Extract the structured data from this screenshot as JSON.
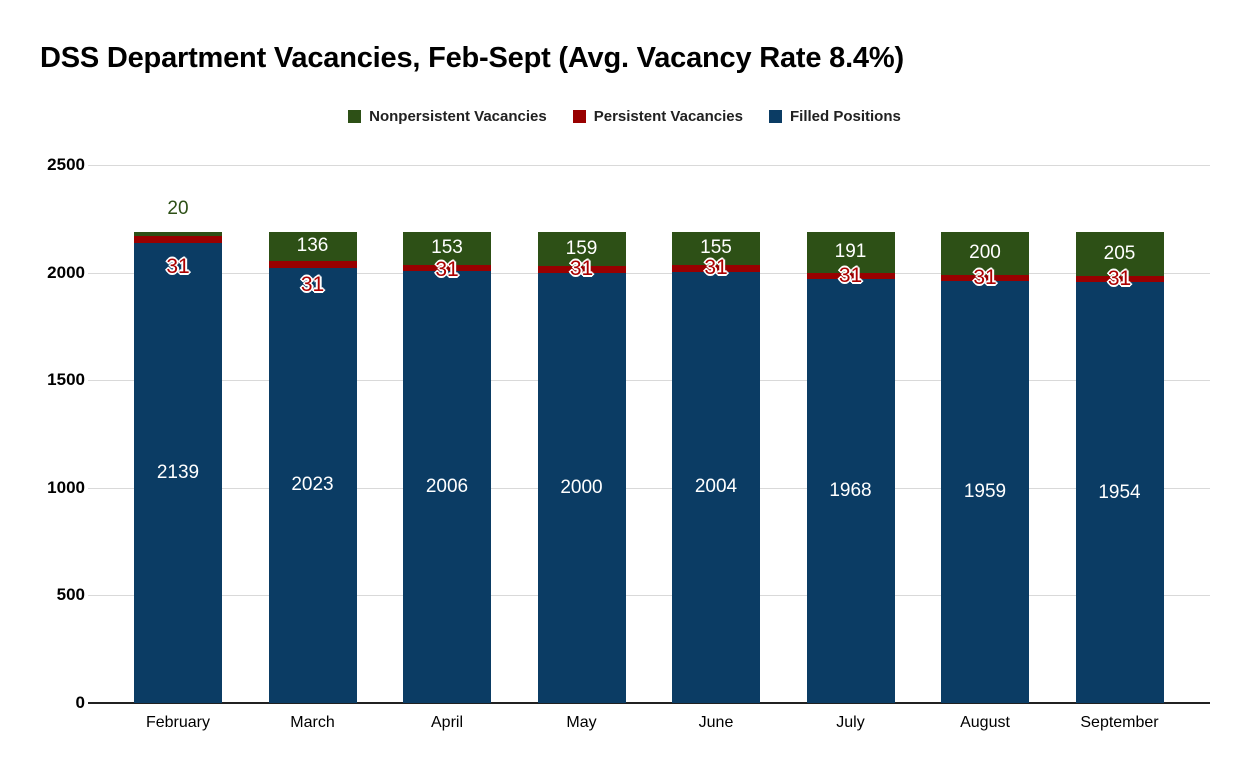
{
  "title": "DSS Department Vacancies, Feb-Sept (Avg. Vacancy Rate 8.4%)",
  "legend": [
    {
      "label": "Nonpersistent Vacancies",
      "color": "#2d5016"
    },
    {
      "label": "Persistent Vacancies",
      "color": "#990000"
    },
    {
      "label": "Filled Positions",
      "color": "#0b3c64"
    }
  ],
  "chart_data": {
    "type": "bar",
    "stacked": true,
    "title": "DSS Department Vacancies, Feb-Sept (Avg. Vacancy Rate 8.4%)",
    "categories": [
      "February",
      "March",
      "April",
      "May",
      "June",
      "July",
      "August",
      "September"
    ],
    "series": [
      {
        "name": "Filled Positions",
        "color": "#0b3c64",
        "values": [
          2139,
          2023,
          2006,
          2000,
          2004,
          1968,
          1959,
          1954
        ]
      },
      {
        "name": "Persistent Vacancies",
        "color": "#990000",
        "values": [
          31,
          31,
          31,
          31,
          31,
          31,
          31,
          31
        ]
      },
      {
        "name": "Nonpersistent Vacancies",
        "color": "#2d5016",
        "values": [
          20,
          136,
          153,
          159,
          155,
          191,
          200,
          205
        ]
      }
    ],
    "bar_totals": [
      2190,
      2190,
      2190,
      2190,
      2190,
      2190,
      2190,
      2190
    ],
    "yticks": [
      0,
      500,
      1000,
      1500,
      2000,
      2500
    ],
    "ylim": [
      0,
      2500
    ],
    "xlabel": "",
    "ylabel": "",
    "grid": true,
    "legend_position": "top",
    "annotation_colors": {
      "inside_label": "#ffffff",
      "outside_label": "#2d5016",
      "persistent_label": "#ab0000",
      "gridline": "#d9d9d9",
      "baseline": "#212121"
    }
  }
}
